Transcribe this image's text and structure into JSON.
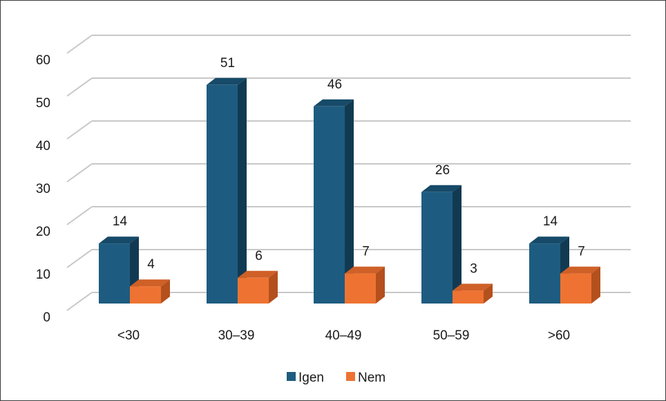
{
  "chart_data": {
    "type": "bar",
    "style": "3d-clustered-column",
    "categories": [
      "<30",
      "30–39",
      "40–49",
      "50–59",
      ">60"
    ],
    "series": [
      {
        "name": "Igen",
        "values": [
          14,
          51,
          46,
          26,
          14
        ]
      },
      {
        "name": "Nem",
        "values": [
          4,
          6,
          7,
          3,
          7
        ]
      }
    ],
    "yticks": [
      "0",
      "10",
      "20",
      "30",
      "40",
      "50",
      "60"
    ],
    "ylim": [
      0,
      60
    ],
    "grid": true,
    "legend_position": "bottom"
  },
  "colors": {
    "Igen": {
      "front": "#1d5c80",
      "side": "#113a52",
      "top": "#164a68"
    },
    "Nem": {
      "front": "#ee7332",
      "side": "#b4501d",
      "top": "#cf6027"
    },
    "grid": "#c8c8c8",
    "floor": "#c8c8c8"
  }
}
